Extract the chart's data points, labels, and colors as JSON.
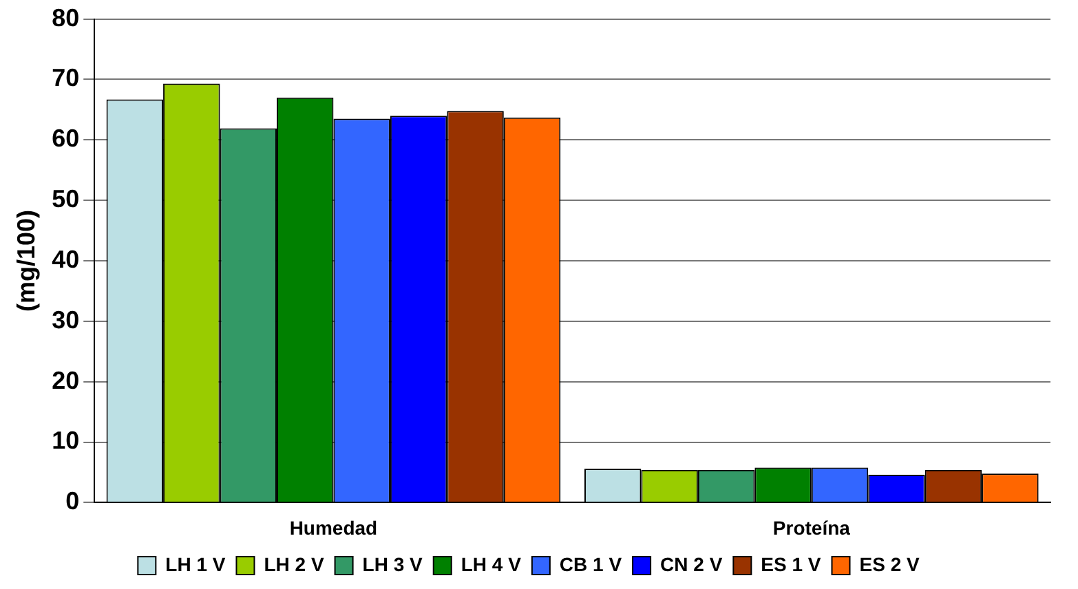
{
  "chart_data": {
    "type": "bar",
    "ylabel": "(mg/100)",
    "categories": [
      "Humedad",
      "Proteína"
    ],
    "series": [
      {
        "name": "LH 1 V",
        "color": "#bce0e4",
        "values": [
          66.7,
          5.6
        ]
      },
      {
        "name": "LH 2 V",
        "color": "#99cc00",
        "values": [
          69.3,
          5.4
        ]
      },
      {
        "name": "LH 3 V",
        "color": "#339966",
        "values": [
          61.9,
          5.4
        ]
      },
      {
        "name": "LH 4 V",
        "color": "#008000",
        "values": [
          67,
          5.8
        ]
      },
      {
        "name": "CB 1 V",
        "color": "#3366ff",
        "values": [
          63.5,
          5.8
        ]
      },
      {
        "name": "CN 2 V",
        "color": "#0000ff",
        "values": [
          64,
          4.6
        ]
      },
      {
        "name": "ES 1 V",
        "color": "#993300",
        "values": [
          64.8,
          5.4
        ]
      },
      {
        "name": "ES 2 V",
        "color": "#ff6600",
        "values": [
          63.7,
          4.8
        ]
      }
    ],
    "ylim": [
      0,
      80
    ],
    "yticks": [
      0,
      10,
      20,
      30,
      40,
      50,
      60,
      70,
      80
    ],
    "grid": "y",
    "legend": "bottom"
  }
}
